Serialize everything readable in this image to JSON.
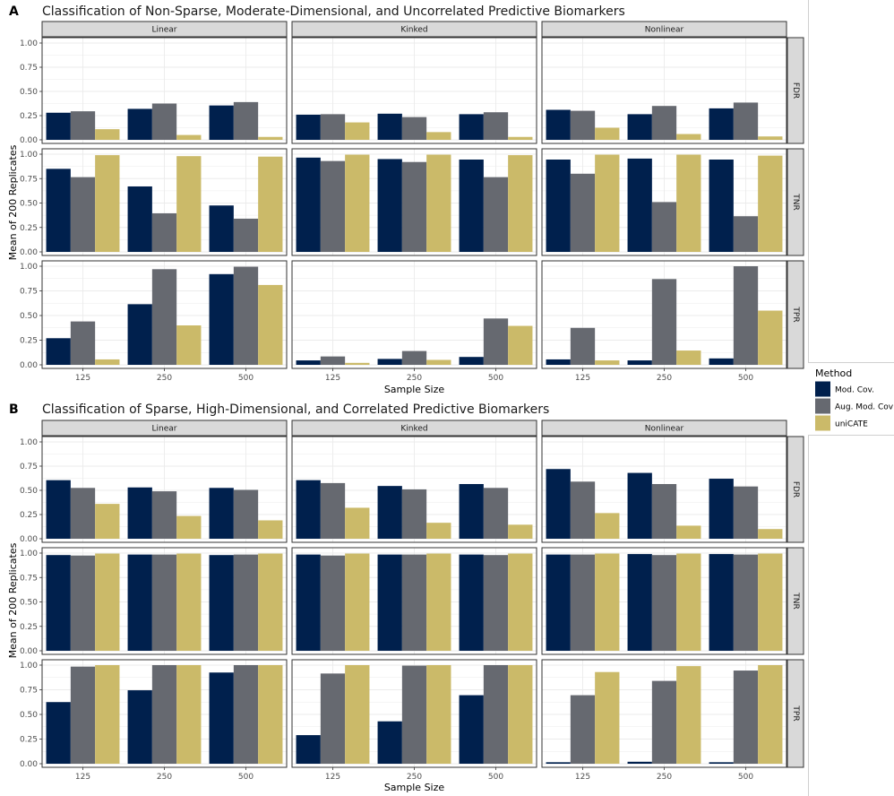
{
  "chart_data": [
    {
      "type": "bar",
      "panel_label": "A",
      "title": "Classification of Non-Sparse, Moderate-Dimensional, and Uncorrelated Predictive Biomarkers",
      "xlabel": "Sample Size",
      "ylabel": "Mean of 200 Replicates",
      "ylim": [
        0,
        1
      ],
      "yticks": [
        "0.00",
        "0.25",
        "0.50",
        "0.75",
        "1.00"
      ],
      "categories": [
        "125",
        "250",
        "500"
      ],
      "facet_columns": [
        "Linear",
        "Kinked",
        "Nonlinear"
      ],
      "facet_rows": [
        "FDR",
        "TNR",
        "TPR"
      ],
      "grid": true,
      "values": {
        "FDR": {
          "Linear": {
            "Mod. Cov.": [
              0.28,
              0.32,
              0.355
            ],
            "Aug. Mod. Cov": [
              0.295,
              0.375,
              0.39
            ],
            "uniCATE": [
              0.11,
              0.05,
              0.03
            ]
          },
          "Kinked": {
            "Mod. Cov.": [
              0.26,
              0.27,
              0.265
            ],
            "Aug. Mod. Cov": [
              0.265,
              0.235,
              0.285
            ],
            "uniCATE": [
              0.18,
              0.08,
              0.03
            ]
          },
          "Nonlinear": {
            "Mod. Cov.": [
              0.31,
              0.265,
              0.325
            ],
            "Aug. Mod. Cov": [
              0.3,
              0.35,
              0.385
            ],
            "uniCATE": [
              0.125,
              0.06,
              0.035
            ]
          }
        },
        "TNR": {
          "Linear": {
            "Mod. Cov.": [
              0.85,
              0.67,
              0.475
            ],
            "Aug. Mod. Cov": [
              0.765,
              0.395,
              0.34
            ],
            "uniCATE": [
              0.99,
              0.98,
              0.975
            ]
          },
          "Kinked": {
            "Mod. Cov.": [
              0.965,
              0.95,
              0.945
            ],
            "Aug. Mod. Cov": [
              0.93,
              0.92,
              0.765
            ],
            "uniCATE": [
              0.995,
              0.995,
              0.99
            ]
          },
          "Nonlinear": {
            "Mod. Cov.": [
              0.945,
              0.955,
              0.945
            ],
            "Aug. Mod. Cov": [
              0.8,
              0.51,
              0.365
            ],
            "uniCATE": [
              0.995,
              0.995,
              0.985
            ]
          }
        },
        "TPR": {
          "Linear": {
            "Mod. Cov.": [
              0.27,
              0.615,
              0.92
            ],
            "Aug. Mod. Cov": [
              0.44,
              0.97,
              0.995
            ],
            "uniCATE": [
              0.055,
              0.4,
              0.81
            ]
          },
          "Kinked": {
            "Mod. Cov.": [
              0.045,
              0.06,
              0.08
            ],
            "Aug. Mod. Cov": [
              0.085,
              0.14,
              0.47
            ],
            "uniCATE": [
              0.02,
              0.05,
              0.395
            ]
          },
          "Nonlinear": {
            "Mod. Cov.": [
              0.055,
              0.045,
              0.065
            ],
            "Aug. Mod. Cov": [
              0.375,
              0.87,
              1.0
            ],
            "uniCATE": [
              0.045,
              0.145,
              0.55
            ]
          }
        }
      }
    },
    {
      "type": "bar",
      "panel_label": "B",
      "title": "Classification of Sparse, High-Dimensional, and Correlated Predictive Biomarkers",
      "xlabel": "Sample Size",
      "ylabel": "Mean of 200 Replicates",
      "ylim": [
        0,
        1
      ],
      "yticks": [
        "0.00",
        "0.25",
        "0.50",
        "0.75",
        "1.00"
      ],
      "categories": [
        "125",
        "250",
        "500"
      ],
      "facet_columns": [
        "Linear",
        "Kinked",
        "Nonlinear"
      ],
      "facet_rows": [
        "FDR",
        "TNR",
        "TPR"
      ],
      "grid": true,
      "values": {
        "FDR": {
          "Linear": {
            "Mod. Cov.": [
              0.605,
              0.53,
              0.525
            ],
            "Aug. Mod. Cov": [
              0.525,
              0.49,
              0.505
            ],
            "uniCATE": [
              0.36,
              0.235,
              0.19
            ]
          },
          "Kinked": {
            "Mod. Cov.": [
              0.605,
              0.545,
              0.565
            ],
            "Aug. Mod. Cov": [
              0.575,
              0.51,
              0.525
            ],
            "uniCATE": [
              0.32,
              0.165,
              0.145
            ]
          },
          "Nonlinear": {
            "Mod. Cov.": [
              0.72,
              0.68,
              0.62
            ],
            "Aug. Mod. Cov": [
              0.59,
              0.565,
              0.54
            ],
            "uniCATE": [
              0.265,
              0.135,
              0.1
            ]
          }
        },
        "TNR": {
          "Linear": {
            "Mod. Cov.": [
              0.98,
              0.985,
              0.98
            ],
            "Aug. Mod. Cov": [
              0.975,
              0.985,
              0.985
            ],
            "uniCATE": [
              0.995,
              0.995,
              0.995
            ]
          },
          "Kinked": {
            "Mod. Cov.": [
              0.985,
              0.985,
              0.985
            ],
            "Aug. Mod. Cov": [
              0.975,
              0.985,
              0.98
            ],
            "uniCATE": [
              0.995,
              0.995,
              0.995
            ]
          },
          "Nonlinear": {
            "Mod. Cov.": [
              0.985,
              0.99,
              0.99
            ],
            "Aug. Mod. Cov": [
              0.985,
              0.98,
              0.985
            ],
            "uniCATE": [
              0.995,
              0.995,
              0.995
            ]
          }
        },
        "TPR": {
          "Linear": {
            "Mod. Cov.": [
              0.625,
              0.745,
              0.925
            ],
            "Aug. Mod. Cov": [
              0.985,
              1.0,
              1.0
            ],
            "uniCATE": [
              1.0,
              1.0,
              1.0
            ]
          },
          "Kinked": {
            "Mod. Cov.": [
              0.29,
              0.43,
              0.695
            ],
            "Aug. Mod. Cov": [
              0.915,
              0.995,
              1.0
            ],
            "uniCATE": [
              1.0,
              1.0,
              1.0
            ]
          },
          "Nonlinear": {
            "Mod. Cov.": [
              0.015,
              0.02,
              0.015
            ],
            "Aug. Mod. Cov": [
              0.695,
              0.84,
              0.945
            ],
            "uniCATE": [
              0.93,
              0.99,
              1.0
            ]
          }
        }
      }
    }
  ],
  "legend": {
    "title": "Method",
    "placement": "right",
    "items": [
      {
        "name": "Mod. Cov.",
        "color": "#00204d"
      },
      {
        "name": "Aug. Mod. Cov",
        "color": "#666970"
      },
      {
        "name": "uniCATE",
        "color": "#cbba69"
      }
    ]
  },
  "colors": {
    "strip_background": "#d9d9d9",
    "grid_major": "#ebebeb",
    "panel_border": "#333333"
  }
}
